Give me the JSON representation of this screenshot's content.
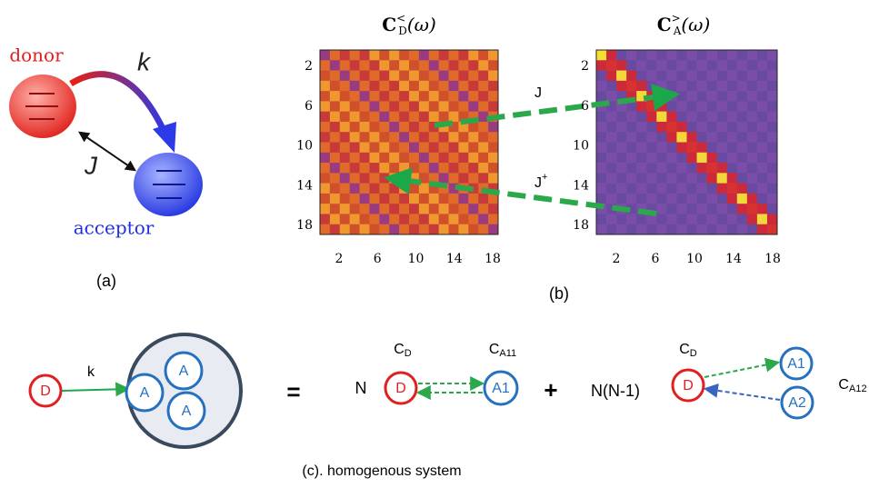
{
  "panel_a": {
    "donor": "donor",
    "acceptor": "acceptor",
    "k": "k",
    "J": "J",
    "caption": "(a)"
  },
  "panel_b": {
    "left": {
      "title": {
        "base": "C",
        "sup": "<",
        "sub": "D",
        "arg": "(ω)"
      },
      "xticks": [
        "2",
        "6",
        "10",
        "14",
        "18"
      ],
      "yticks": [
        "2",
        "6",
        "10",
        "14",
        "18"
      ]
    },
    "right": {
      "title": {
        "base": "C",
        "sup": ">",
        "sub": "A",
        "arg": "(ω)"
      },
      "xticks": [
        "2",
        "6",
        "10",
        "14",
        "18"
      ],
      "yticks": [
        "2",
        "6",
        "10",
        "14",
        "18"
      ]
    },
    "arrow_top": "J",
    "arrow_bottom": {
      "base": "J",
      "sup": "+"
    },
    "caption": "(b)"
  },
  "panel_c": {
    "lhs": {
      "donor": "D",
      "k": "k",
      "acceptors": [
        "A",
        "A",
        "A"
      ]
    },
    "equals": "=",
    "term1": {
      "factor": "N",
      "cd": {
        "base": "C",
        "sub": "D"
      },
      "ca": {
        "base": "C",
        "sub": "A11"
      },
      "donor": "D",
      "acceptor": "A1"
    },
    "plus": "+",
    "term2": {
      "factor": "N(N-1)",
      "cd": {
        "base": "C",
        "sub": "D"
      },
      "ca": {
        "base": "C",
        "sub": "A12"
      },
      "donor": "D",
      "acceptors": [
        "A1",
        "A2"
      ]
    },
    "caption": "(c).  homogenous system"
  }
}
